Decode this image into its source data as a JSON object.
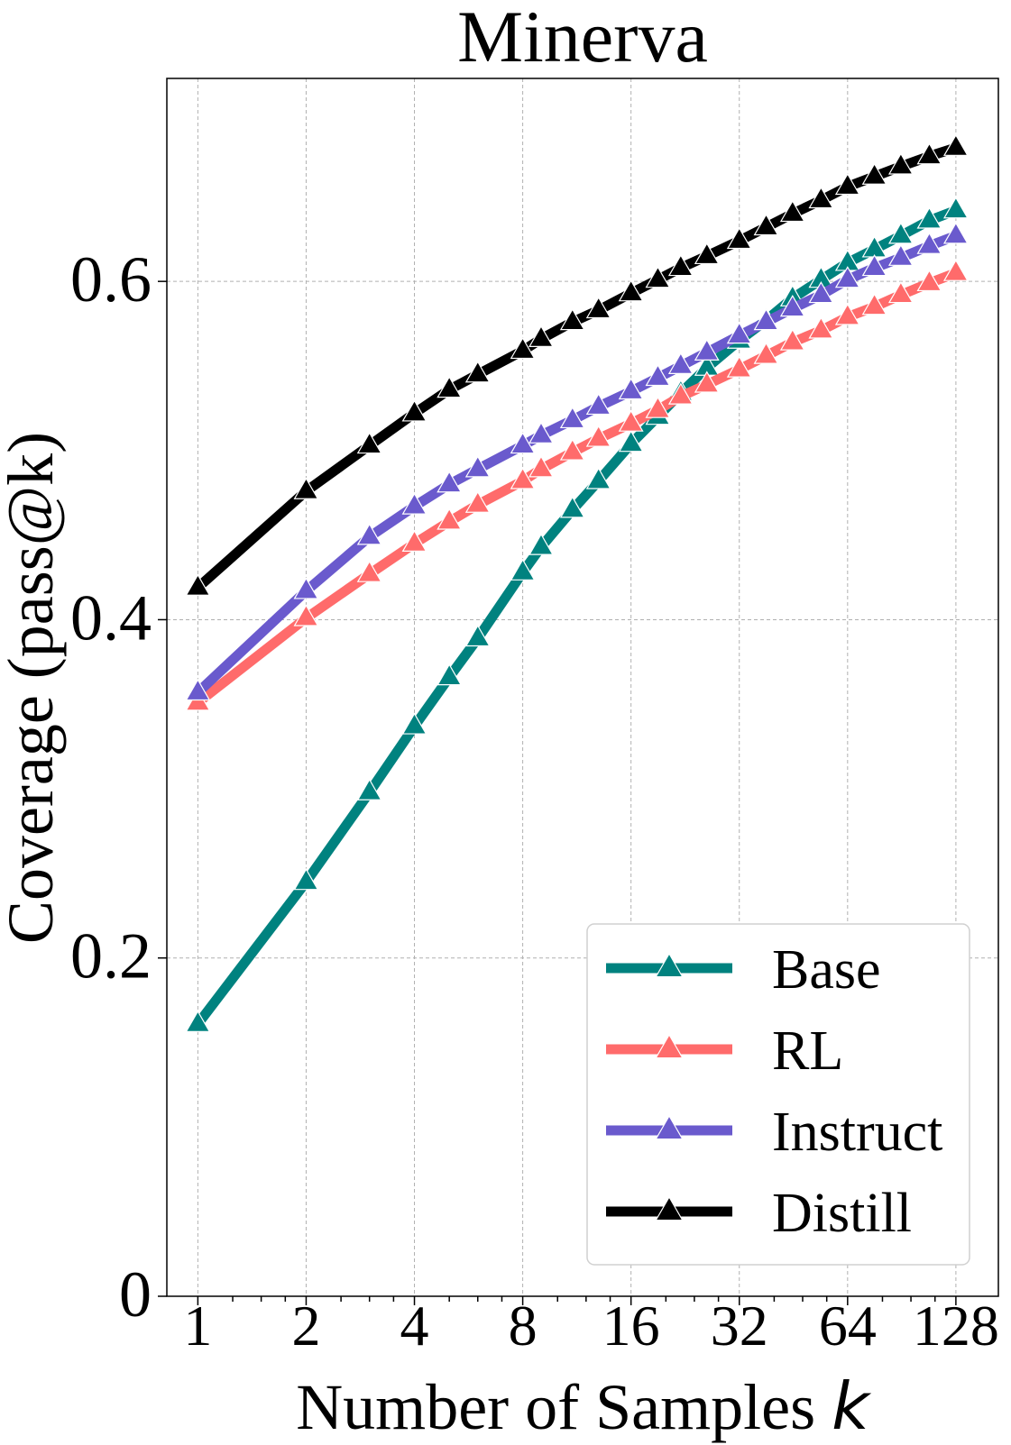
{
  "chart_data": {
    "type": "line",
    "title": "Minerva",
    "xlabel": "Number of Samples",
    "xlabel_var": "k",
    "ylabel": "Coverage (pass@k)",
    "xscale": "log2",
    "xlim": [
      0.82,
      168
    ],
    "ylim": [
      0,
      0.72
    ],
    "x_ticks": [
      1,
      2,
      4,
      8,
      16,
      32,
      64,
      128
    ],
    "x_tick_labels": [
      "1",
      "2",
      "4",
      "8",
      "16",
      "32",
      "64",
      "128"
    ],
    "y_ticks": [
      0,
      0.2,
      0.4,
      0.6
    ],
    "y_tick_labels": [
      "0",
      "0.2",
      "0.4",
      "0.6"
    ],
    "grid": true,
    "legend_position": "lower-right",
    "x": [
      1,
      2,
      3,
      4,
      5,
      6,
      8,
      9,
      11,
      13,
      16,
      19,
      22,
      26,
      32,
      38,
      45,
      54,
      64,
      76,
      90,
      108,
      128
    ],
    "series": [
      {
        "name": "Base",
        "color": "#00827f",
        "values": [
          0.161,
          0.245,
          0.298,
          0.337,
          0.366,
          0.389,
          0.428,
          0.443,
          0.465,
          0.482,
          0.504,
          0.52,
          0.534,
          0.549,
          0.565,
          0.577,
          0.59,
          0.601,
          0.611,
          0.619,
          0.627,
          0.636,
          0.642
        ]
      },
      {
        "name": "RL",
        "color": "#ff6b6b",
        "values": [
          0.351,
          0.401,
          0.427,
          0.445,
          0.458,
          0.468,
          0.482,
          0.489,
          0.499,
          0.507,
          0.516,
          0.524,
          0.532,
          0.539,
          0.548,
          0.556,
          0.564,
          0.571,
          0.579,
          0.585,
          0.592,
          0.599,
          0.605
        ]
      },
      {
        "name": "Instruct",
        "color": "#6a5acd",
        "values": [
          0.357,
          0.417,
          0.449,
          0.467,
          0.48,
          0.489,
          0.503,
          0.509,
          0.518,
          0.526,
          0.535,
          0.543,
          0.55,
          0.558,
          0.568,
          0.576,
          0.584,
          0.592,
          0.601,
          0.608,
          0.614,
          0.621,
          0.627
        ]
      },
      {
        "name": "Distill",
        "color": "#000000",
        "values": [
          0.419,
          0.476,
          0.503,
          0.522,
          0.536,
          0.545,
          0.559,
          0.566,
          0.576,
          0.583,
          0.593,
          0.601,
          0.608,
          0.615,
          0.624,
          0.632,
          0.64,
          0.648,
          0.656,
          0.662,
          0.668,
          0.674,
          0.679
        ]
      }
    ]
  }
}
